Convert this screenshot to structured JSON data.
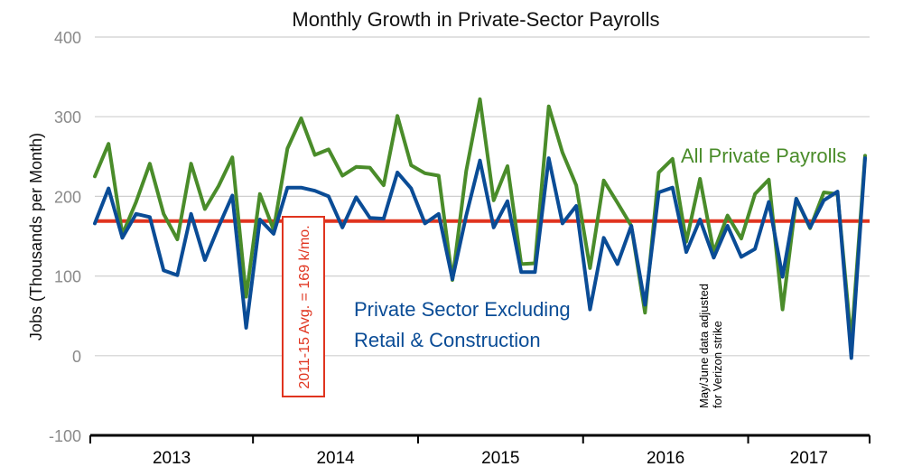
{
  "chart_data": {
    "type": "line",
    "title": "Monthly Growth in Private-Sector Payrolls",
    "ylabel": "Jobs (Thousands per Month)",
    "xlabel": "",
    "ylim": [
      -100,
      400
    ],
    "yticks": [
      -100,
      0,
      100,
      200,
      300,
      400
    ],
    "year_labels": [
      "2013",
      "2014",
      "2015",
      "2016",
      "2017"
    ],
    "start": "2013-01",
    "grid": true,
    "series": [
      {
        "name": "All Private Payrolls",
        "color": "#4a8c2a",
        "values": [
          225,
          266,
          152,
          193,
          241,
          178,
          146,
          241,
          184,
          213,
          249,
          74,
          203,
          158,
          260,
          298,
          252,
          259,
          226,
          237,
          236,
          214,
          301,
          239,
          229,
          226,
          95,
          232,
          322,
          195,
          238,
          115,
          116,
          313,
          255,
          214,
          110,
          220,
          192,
          163,
          54,
          230,
          247,
          143,
          222,
          130,
          176,
          147,
          203,
          221,
          58,
          197,
          160,
          205,
          203,
          17,
          251
        ]
      },
      {
        "name": "Private Sector Excluding Retail & Construction",
        "color": "#0a4c96",
        "values": [
          166,
          210,
          148,
          178,
          174,
          107,
          101,
          178,
          120,
          162,
          201,
          35,
          171,
          153,
          211,
          211,
          207,
          200,
          161,
          199,
          173,
          172,
          230,
          210,
          166,
          178,
          96,
          176,
          245,
          161,
          194,
          105,
          105,
          248,
          166,
          188,
          58,
          148,
          115,
          163,
          64,
          205,
          211,
          130,
          171,
          123,
          163,
          124,
          134,
          193,
          99,
          197,
          161,
          195,
          206,
          -3,
          248
        ]
      }
    ],
    "reference_line": {
      "value": 169,
      "label": "2011-15 Avg. = 169 k/mo.",
      "color": "#e0341f"
    },
    "annotations": {
      "green_label": "All Private Payrolls",
      "blue_label_line1": "Private Sector Excluding",
      "blue_label_line2": "Retail & Construction",
      "note_line1": "May/June data adjusted",
      "note_line2": "for Verizon strike"
    }
  }
}
